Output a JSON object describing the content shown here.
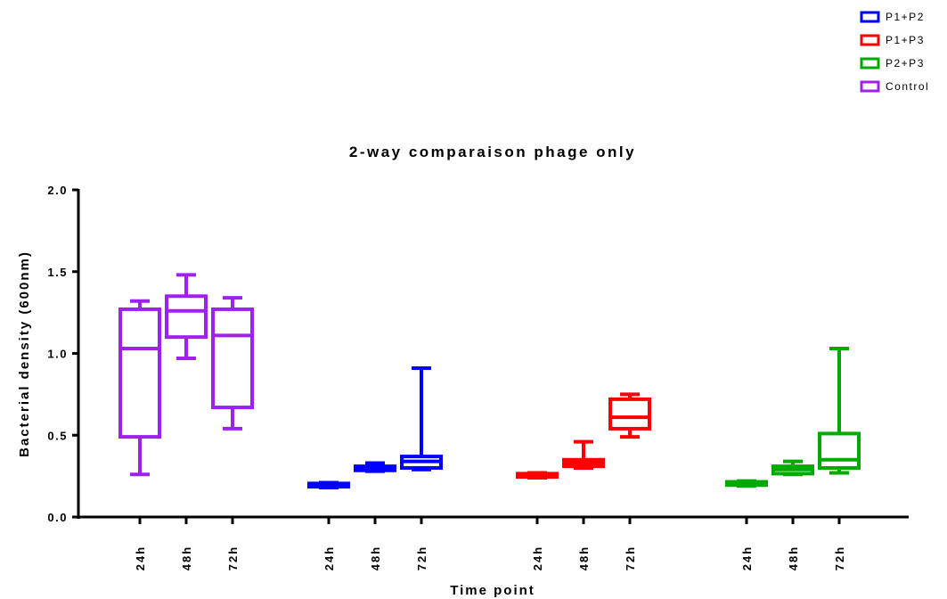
{
  "chart_data": {
    "type": "box",
    "title": "2-way comparaison phage only",
    "xlabel": "Time point",
    "ylabel": "Bacterial density  (600nm)",
    "ylim": [
      0,
      2.0
    ],
    "yticks": [
      "0.0",
      "0.5",
      "1.0",
      "1.5",
      "2.0"
    ],
    "legend_position": "top-right",
    "legend": [
      {
        "name": "P1+P2",
        "color": "#0000ff"
      },
      {
        "name": "P1+P3",
        "color": "#ff0000"
      },
      {
        "name": "P2+P3",
        "color": "#00aa00"
      },
      {
        "name": "Control",
        "color": "#a020f0"
      }
    ],
    "groups": [
      {
        "series": "Control",
        "color": "#a020f0",
        "boxes": [
          {
            "category": "24h",
            "min": 0.26,
            "q1": 0.49,
            "median": 1.03,
            "q3": 1.27,
            "max": 1.32
          },
          {
            "category": "48h",
            "min": 0.97,
            "q1": 1.1,
            "median": 1.26,
            "q3": 1.35,
            "max": 1.48
          },
          {
            "category": "72h",
            "min": 0.54,
            "q1": 0.67,
            "median": 1.11,
            "q3": 1.27,
            "max": 1.34
          }
        ]
      },
      {
        "series": "P1+P2",
        "color": "#0000ff",
        "boxes": [
          {
            "category": "24h",
            "min": 0.18,
            "q1": 0.185,
            "median": 0.195,
            "q3": 0.205,
            "max": 0.21
          },
          {
            "category": "48h",
            "min": 0.28,
            "q1": 0.285,
            "median": 0.295,
            "q3": 0.31,
            "max": 0.33
          },
          {
            "category": "72h",
            "min": 0.29,
            "q1": 0.3,
            "median": 0.34,
            "q3": 0.37,
            "max": 0.91
          }
        ]
      },
      {
        "series": "P1+P3",
        "color": "#ff0000",
        "boxes": [
          {
            "category": "24h",
            "min": 0.24,
            "q1": 0.245,
            "median": 0.255,
            "q3": 0.265,
            "max": 0.27
          },
          {
            "category": "48h",
            "min": 0.3,
            "q1": 0.31,
            "median": 0.33,
            "q3": 0.35,
            "max": 0.46
          },
          {
            "category": "72h",
            "min": 0.49,
            "q1": 0.54,
            "median": 0.61,
            "q3": 0.72,
            "max": 0.75
          }
        ]
      },
      {
        "series": "P2+P3",
        "color": "#00aa00",
        "boxes": [
          {
            "category": "24h",
            "min": 0.19,
            "q1": 0.195,
            "median": 0.205,
            "q3": 0.215,
            "max": 0.22
          },
          {
            "category": "48h",
            "min": 0.26,
            "q1": 0.265,
            "median": 0.29,
            "q3": 0.31,
            "max": 0.34
          },
          {
            "category": "72h",
            "min": 0.27,
            "q1": 0.3,
            "median": 0.35,
            "q3": 0.51,
            "max": 1.03
          }
        ]
      }
    ]
  }
}
